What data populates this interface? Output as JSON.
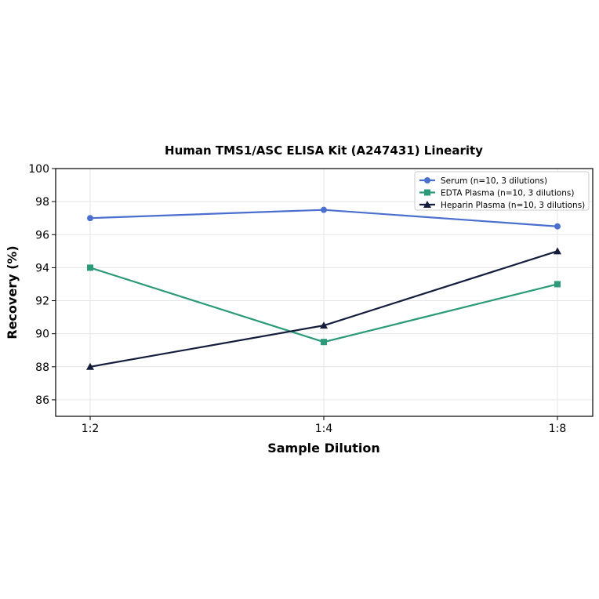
{
  "chart_data": {
    "type": "line",
    "title": "Human TMS1/ASC ELISA Kit (A247431) Linearity",
    "xlabel": "Sample Dilution",
    "ylabel": "Recovery (%)",
    "categories": [
      "1:2",
      "1:4",
      "1:8"
    ],
    "ylim": [
      85,
      100
    ],
    "yticks": [
      86,
      88,
      90,
      92,
      94,
      96,
      98,
      100
    ],
    "grid": true,
    "legend_position": "top-right",
    "series": [
      {
        "name": "Serum (n=10, 3 dilutions)",
        "values": [
          97.0,
          97.5,
          96.5
        ],
        "color": "#4a6fce",
        "marker": "circle"
      },
      {
        "name": "EDTA Plasma (n=10, 3 dilutions)",
        "values": [
          94.0,
          89.5,
          93.0
        ],
        "color": "#2a9a78",
        "marker": "square"
      },
      {
        "name": "Heparin Plasma (n=10, 3 dilutions)",
        "values": [
          88.0,
          90.5,
          95.0
        ],
        "color": "#141e3c",
        "marker": "triangle"
      }
    ]
  }
}
